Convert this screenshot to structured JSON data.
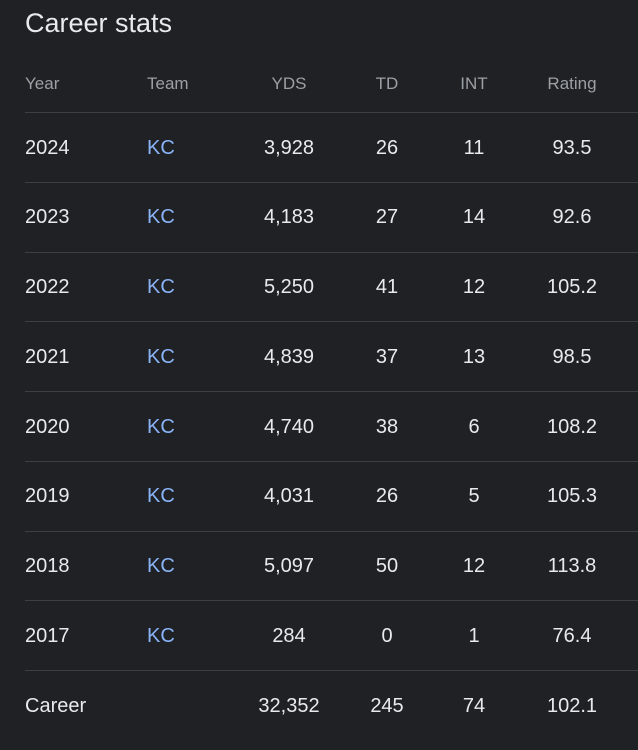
{
  "title": "Career stats",
  "columns": [
    "Year",
    "Team",
    "YDS",
    "TD",
    "INT",
    "Rating"
  ],
  "rows": [
    {
      "year": "2024",
      "team": "KC",
      "yds": "3,928",
      "td": "26",
      "int": "11",
      "rating": "93.5"
    },
    {
      "year": "2023",
      "team": "KC",
      "yds": "4,183",
      "td": "27",
      "int": "14",
      "rating": "92.6"
    },
    {
      "year": "2022",
      "team": "KC",
      "yds": "5,250",
      "td": "41",
      "int": "12",
      "rating": "105.2"
    },
    {
      "year": "2021",
      "team": "KC",
      "yds": "4,839",
      "td": "37",
      "int": "13",
      "rating": "98.5"
    },
    {
      "year": "2020",
      "team": "KC",
      "yds": "4,740",
      "td": "38",
      "int": "6",
      "rating": "108.2"
    },
    {
      "year": "2019",
      "team": "KC",
      "yds": "4,031",
      "td": "26",
      "int": "5",
      "rating": "105.3"
    },
    {
      "year": "2018",
      "team": "KC",
      "yds": "5,097",
      "td": "50",
      "int": "12",
      "rating": "113.8"
    },
    {
      "year": "2017",
      "team": "KC",
      "yds": "284",
      "td": "0",
      "int": "1",
      "rating": "76.4"
    }
  ],
  "career": {
    "label": "Career",
    "yds": "32,352",
    "td": "245",
    "int": "74",
    "rating": "102.1"
  },
  "colors": {
    "background": "#202124",
    "link": "#8ab4f8",
    "text": "#e8eaed",
    "header": "#9aa0a6"
  }
}
